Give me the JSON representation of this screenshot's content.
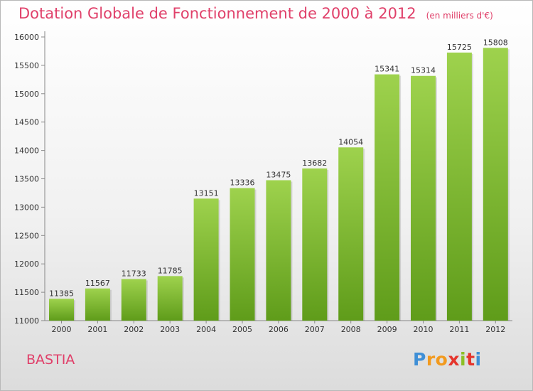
{
  "chart_data": {
    "type": "bar",
    "title": "Dotation Globale de Fonctionnement de 2000 à 2012",
    "unit_note": "(en milliers d'€)",
    "categories": [
      "2000",
      "2001",
      "2002",
      "2003",
      "2004",
      "2005",
      "2006",
      "2007",
      "2008",
      "2009",
      "2010",
      "2011",
      "2012"
    ],
    "values": [
      11385,
      11567,
      11733,
      11785,
      13151,
      13336,
      13475,
      13682,
      14054,
      15341,
      15314,
      15725,
      15808
    ],
    "y_ticks": [
      11000,
      11500,
      12000,
      12500,
      13000,
      13500,
      14000,
      14500,
      15000,
      15500,
      16000
    ],
    "ylim": [
      11000,
      16000
    ],
    "xlabel": "",
    "ylabel": "",
    "grid": false,
    "colors": {
      "bar_top": "#9ed24d",
      "bar_bottom": "#5f9c1a",
      "title": "#e0406a"
    }
  },
  "location": "BASTIA",
  "logo": {
    "text": "Proxiti",
    "letters": [
      "P",
      "r",
      "o",
      "x",
      "i",
      "t",
      "i"
    ]
  }
}
